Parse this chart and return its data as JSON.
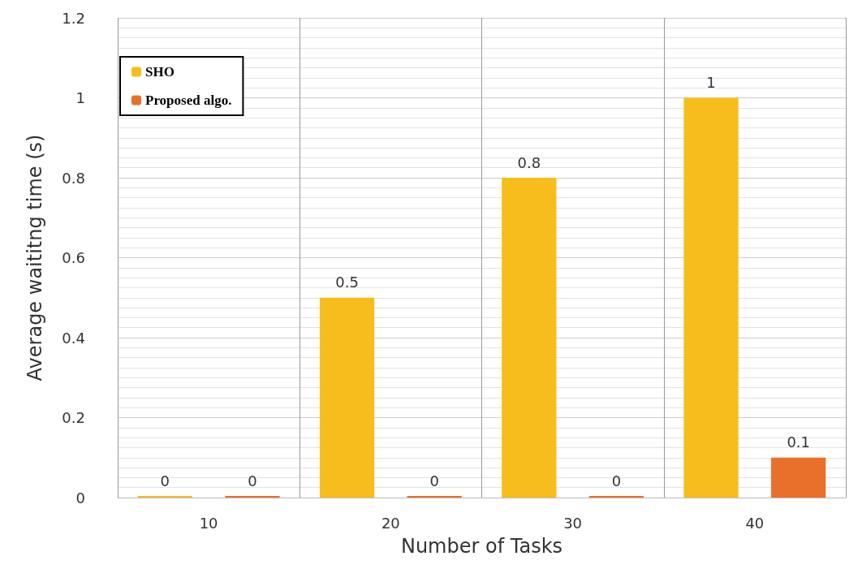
{
  "chart_data": {
    "type": "bar",
    "xlabel": "Number of Tasks",
    "ylabel": "Average waititng time (s)",
    "categories": [
      "10",
      "20",
      "30",
      "40"
    ],
    "series": [
      {
        "name": "SHO",
        "color": "#f7bd1c",
        "values": [
          0,
          0.5,
          0.8,
          1
        ]
      },
      {
        "name": "Proposed algo.",
        "color": "#e9702a",
        "values": [
          0,
          0,
          0,
          0.1
        ]
      }
    ],
    "ylim": [
      0,
      1.2
    ],
    "yticks": [
      0,
      0.2,
      0.4,
      0.6,
      0.8,
      1,
      1.2
    ],
    "grid": true,
    "legend": "top left",
    "data_labels": true
  }
}
